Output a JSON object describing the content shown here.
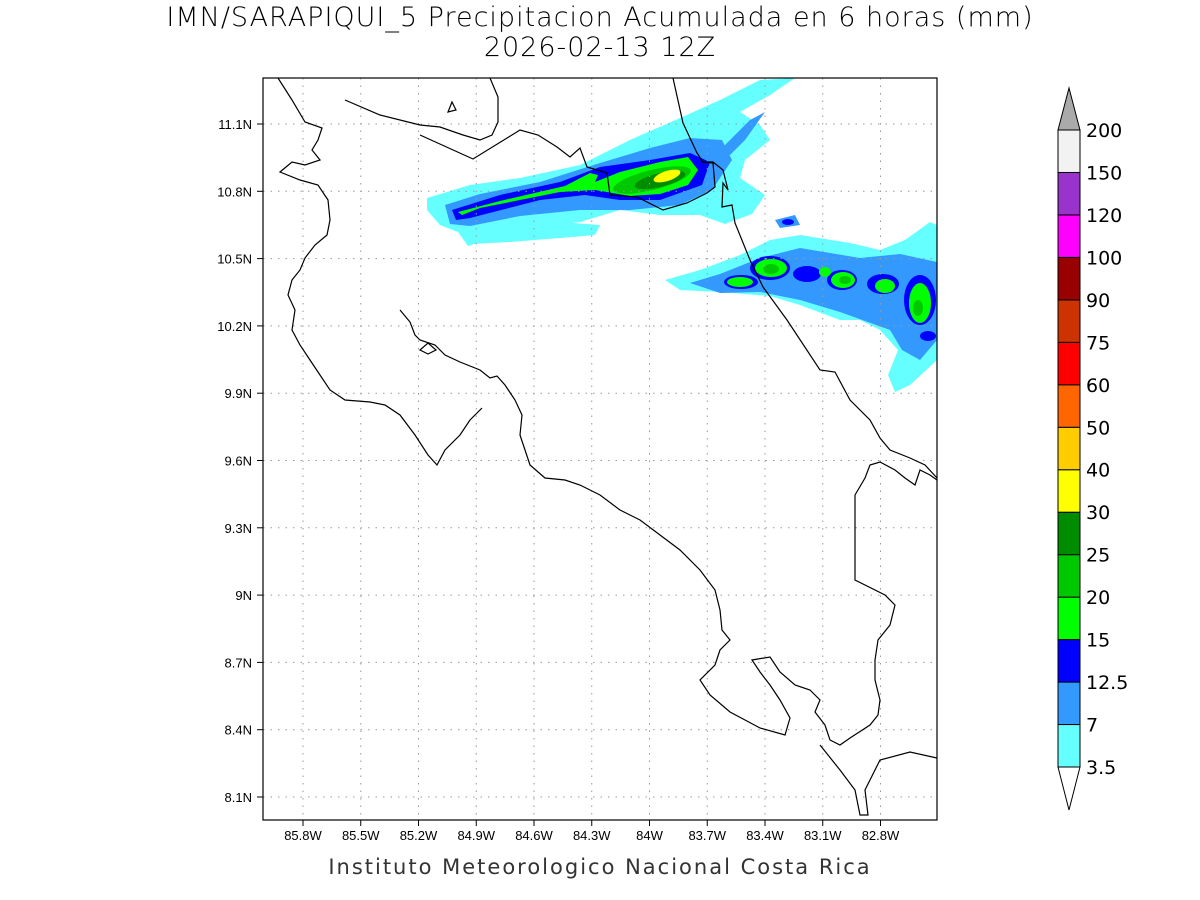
{
  "title": {
    "line1": "IMN/SARAPIQUI_5 Precipitacion Acumulada en 6 horas (mm)",
    "line2": "2026-02-13 12Z"
  },
  "footer": "Instituto Meteorologico Nacional Costa Rica",
  "map": {
    "lon_ticks": [
      "85.8W",
      "85.5W",
      "85.2W",
      "84.9W",
      "84.6W",
      "84.3W",
      "84W",
      "83.7W",
      "83.4W",
      "83.1W",
      "82.8W"
    ],
    "lat_ticks": [
      "11.1N",
      "10.8N",
      "10.5N",
      "10.2N",
      "9.9N",
      "9.6N",
      "9.3N",
      "9N",
      "8.7N",
      "8.4N",
      "8.1N"
    ]
  },
  "colorbar": {
    "labels": [
      "3.5",
      "7",
      "12.5",
      "15",
      "20",
      "25",
      "30",
      "40",
      "50",
      "60",
      "75",
      "90",
      "100",
      "120",
      "150",
      "200"
    ],
    "colors": [
      "#66ffff",
      "#3399ff",
      "#0000ff",
      "#00ff00",
      "#00c800",
      "#008c00",
      "#ffff00",
      "#ffcc00",
      "#ff6600",
      "#ff0000",
      "#cc3300",
      "#990000",
      "#ff00ff",
      "#9933cc",
      "#f2f2f2"
    ],
    "below_color": "#ffffff",
    "above_color": "#aaaaaa"
  }
}
